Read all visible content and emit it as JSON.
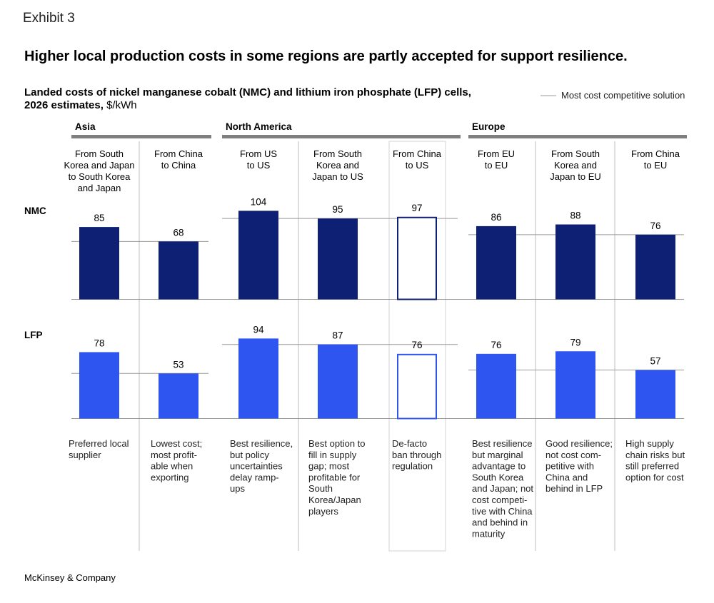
{
  "exhibit_label": "Exhibit 3",
  "title": "Higher local production costs in some regions are partly accepted for support resilience.",
  "subtitle_line1": "Landed costs of nickel manganese cobalt (NMC) and lithium iron phosphate (LFP) cells,",
  "subtitle_line2": "2026 estimates,",
  "subtitle_unit": "$/kWh",
  "legend": {
    "label": "Most cost competitive solution"
  },
  "source": "McKinsey & Company",
  "colors": {
    "nmc": "#0d2073",
    "lfp": "#2f55f0",
    "rule": "#7f7f7f",
    "hatch_box": "#d3d3d3"
  },
  "chart_data": {
    "type": "bar",
    "title": "Higher local production costs in some regions are partly accepted for support resilience.",
    "unit": "$/kWh",
    "regions": [
      {
        "name": "Asia",
        "columns": [
          0,
          1
        ]
      },
      {
        "name": "North America",
        "columns": [
          2,
          3,
          4
        ]
      },
      {
        "name": "Europe",
        "columns": [
          5,
          6,
          7
        ]
      }
    ],
    "categories": [
      {
        "lines": [
          "From South",
          "Korea and Japan",
          "to South Korea",
          "and Japan"
        ],
        "note": [
          "Preferred local",
          "supplier"
        ]
      },
      {
        "lines": [
          "From China",
          "to China"
        ],
        "note": [
          "Lowest cost;",
          "most profit-",
          "able when",
          "exporting"
        ]
      },
      {
        "lines": [
          "From US",
          "to US"
        ],
        "note": [
          "Best resilience,",
          "but policy",
          "uncertainties",
          "delay ramp-",
          "ups"
        ]
      },
      {
        "lines": [
          "From South",
          "Korea and",
          "Japan to US"
        ],
        "note": [
          "Best option to",
          "fill in supply",
          "gap; most",
          "profitable for",
          "South",
          "Korea/Japan",
          "players"
        ]
      },
      {
        "lines": [
          "From China",
          "to US"
        ],
        "note": [
          "De-facto",
          "ban through",
          "regulation"
        ],
        "hypothetical": true
      },
      {
        "lines": [
          "From EU",
          "to EU"
        ],
        "note": [
          "Best resilience",
          "but marginal",
          "advantage to",
          "South Korea",
          "and Japan; not",
          "cost competi-",
          "tive with China",
          "and behind in",
          "maturity"
        ]
      },
      {
        "lines": [
          "From South",
          "Korea and",
          "Japan to EU"
        ],
        "note": [
          "Good resilience;",
          "not cost com-",
          "petitive with",
          "China and",
          "behind in LFP"
        ]
      },
      {
        "lines": [
          "From China",
          "to EU"
        ],
        "note": [
          "High supply",
          "chain risks but",
          "still preferred",
          "option for cost"
        ]
      }
    ],
    "series": [
      {
        "name": "NMC",
        "values": [
          85,
          68,
          104,
          95,
          97,
          86,
          88,
          76
        ],
        "ylim": [
          0,
          120
        ]
      },
      {
        "name": "LFP",
        "values": [
          78,
          53,
          94,
          87,
          76,
          76,
          79,
          57
        ],
        "ylim": [
          0,
          120
        ]
      }
    ],
    "most_cost_competitive": {
      "NMC": [
        68,
        68,
        95,
        95,
        95,
        76,
        76,
        76
      ],
      "LFP": [
        53,
        53,
        87,
        87,
        87,
        57,
        57,
        57
      ]
    }
  }
}
